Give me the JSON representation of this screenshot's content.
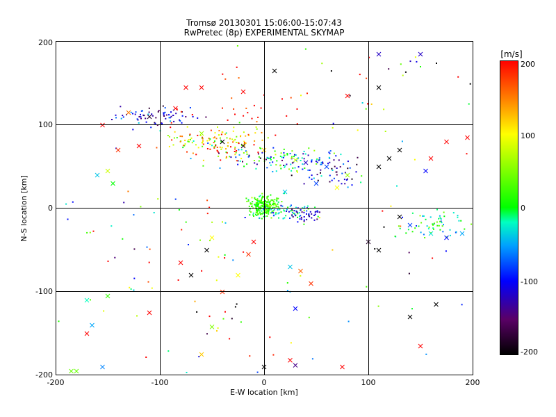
{
  "chart_data": {
    "type": "scatter",
    "title": "Tromsø 20130301 15:06:00-15:07:43",
    "subtitle": "RwPretec (8p) EXPERIMENTAL SKYMAP",
    "xlabel": "E-W location [km]",
    "ylabel": "N-S location [km]",
    "xlim": [
      -200,
      200
    ],
    "ylim": [
      -200,
      200
    ],
    "xticks": [
      "-200",
      "-100",
      "0",
      "100",
      "200"
    ],
    "yticks": [
      "-200",
      "-100",
      "0",
      "100",
      "200"
    ],
    "grid": true,
    "colorbar": {
      "label": "[m/s]",
      "range": [
        -200,
        200
      ],
      "ticks": [
        "200",
        "100",
        "0",
        "-100",
        "-200"
      ],
      "colormap": [
        "#000000",
        "#5a0066",
        "#0000ff",
        "#00a0ff",
        "#00ffc0",
        "#00ff00",
        "#ffff00",
        "#ff8000",
        "#ff0000"
      ]
    },
    "clusters": [
      {
        "cx": 0,
        "cy": 3,
        "sx": 7,
        "sy": 6,
        "vel": 20,
        "vsd": 20,
        "n": 220
      },
      {
        "cx": 20,
        "cy": -5,
        "sx": 15,
        "sy": 4,
        "vel": -30,
        "vsd": 40,
        "n": 60
      },
      {
        "cx": 40,
        "cy": -7,
        "sx": 10,
        "sy": 4,
        "vel": -120,
        "vsd": 20,
        "n": 40
      },
      {
        "cx": -100,
        "cy": 110,
        "sx": 20,
        "sy": 6,
        "vel": -110,
        "vsd": 40,
        "n": 70
      },
      {
        "cx": -50,
        "cy": 83,
        "sx": 25,
        "sy": 8,
        "vel": 80,
        "vsd": 60,
        "n": 100
      },
      {
        "cx": 20,
        "cy": 58,
        "sx": 22,
        "sy": 7,
        "vel": -40,
        "vsd": 70,
        "n": 110
      },
      {
        "cx": 65,
        "cy": 45,
        "sx": 15,
        "sy": 10,
        "vel": -110,
        "vsd": 40,
        "n": 60
      },
      {
        "cx": -35,
        "cy": 70,
        "sx": 15,
        "sy": 8,
        "vel": 150,
        "vsd": 70,
        "n": 40
      },
      {
        "cx": 165,
        "cy": -20,
        "sx": 18,
        "sy": 8,
        "vel": -10,
        "vsd": 40,
        "n": 60
      },
      {
        "cx": 120,
        "cy": 150,
        "sx": 60,
        "sy": 40,
        "vel": 50,
        "vsd": 140,
        "n": 40
      },
      {
        "cx": -100,
        "cy": -50,
        "sx": 80,
        "sy": 70,
        "vel": 20,
        "vsd": 130,
        "n": 80
      },
      {
        "cx": 80,
        "cy": -90,
        "sx": 90,
        "sy": 80,
        "vel": 20,
        "vsd": 140,
        "n": 50
      },
      {
        "cx": -20,
        "cy": 120,
        "sx": 30,
        "sy": 25,
        "vel": 200,
        "vsd": 40,
        "n": 30
      }
    ],
    "crosses": [
      [
        -130,
        115,
        150
      ],
      [
        -110,
        110,
        -180
      ],
      [
        -60,
        90,
        60
      ],
      [
        -40,
        80,
        -200
      ],
      [
        -20,
        75,
        -180
      ],
      [
        0,
        70,
        120
      ],
      [
        30,
        58,
        80
      ],
      [
        40,
        55,
        -120
      ],
      [
        60,
        50,
        -80
      ],
      [
        80,
        40,
        60
      ],
      [
        110,
        50,
        -200
      ],
      [
        120,
        60,
        -200
      ],
      [
        130,
        70,
        -200
      ],
      [
        155,
        45,
        -100
      ],
      [
        160,
        60,
        200
      ],
      [
        175,
        80,
        200
      ],
      [
        -160,
        40,
        -40
      ],
      [
        -140,
        70,
        180
      ],
      [
        -150,
        45,
        80
      ],
      [
        -145,
        30,
        0
      ],
      [
        -75,
        145,
        200
      ],
      [
        -60,
        145,
        200
      ],
      [
        -20,
        140,
        200
      ],
      [
        10,
        165,
        -200
      ],
      [
        80,
        135,
        200
      ],
      [
        110,
        145,
        -200
      ],
      [
        110,
        185,
        -120
      ],
      [
        150,
        185,
        -120
      ],
      [
        130,
        -10,
        -200
      ],
      [
        140,
        -20,
        -80
      ],
      [
        160,
        -30,
        -30
      ],
      [
        175,
        -35,
        -100
      ],
      [
        190,
        -30,
        -50
      ],
      [
        -55,
        -50,
        -200
      ],
      [
        -15,
        -55,
        180
      ],
      [
        25,
        -70,
        -40
      ],
      [
        35,
        -75,
        160
      ],
      [
        45,
        -90,
        180
      ],
      [
        -80,
        -65,
        200
      ],
      [
        -70,
        -80,
        -200
      ],
      [
        -25,
        -80,
        100
      ],
      [
        -40,
        -100,
        180
      ],
      [
        -150,
        -105,
        20
      ],
      [
        -170,
        -110,
        -20
      ],
      [
        -110,
        -125,
        200
      ],
      [
        -50,
        -142,
        50
      ],
      [
        -60,
        -175,
        120
      ],
      [
        30,
        -120,
        -100
      ],
      [
        140,
        -130,
        -200
      ],
      [
        165,
        -115,
        -200
      ],
      [
        150,
        -165,
        200
      ],
      [
        -170,
        -150,
        200
      ],
      [
        -165,
        -140,
        -50
      ],
      [
        -180,
        -195,
        40
      ],
      [
        -155,
        -190,
        -60
      ],
      [
        0,
        -190,
        -200
      ],
      [
        30,
        -188,
        -140
      ],
      [
        75,
        -190,
        200
      ],
      [
        25,
        -182,
        200
      ],
      [
        -185,
        -195,
        40
      ],
      [
        100,
        -40,
        -180
      ],
      [
        110,
        -50,
        -200
      ],
      [
        -10,
        -40,
        200
      ],
      [
        -50,
        -35,
        100
      ],
      [
        20,
        20,
        -40
      ],
      [
        50,
        30,
        -80
      ],
      [
        70,
        25,
        100
      ],
      [
        -85,
        120,
        200
      ],
      [
        -120,
        75,
        200
      ],
      [
        -155,
        100,
        200
      ],
      [
        195,
        85,
        200
      ]
    ]
  }
}
